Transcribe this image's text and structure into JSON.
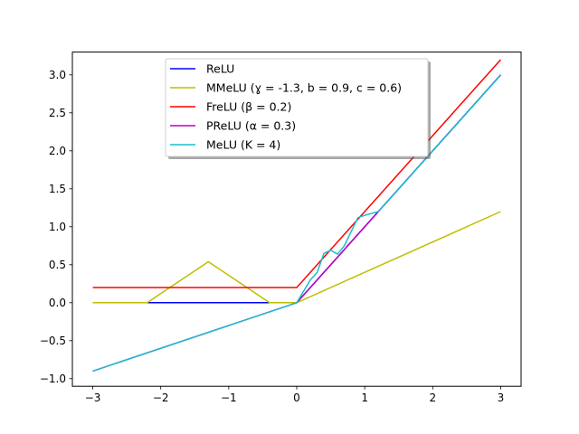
{
  "chart_data": {
    "type": "line",
    "title": "",
    "xlabel": "",
    "ylabel": "",
    "xlim": [
      -3.3,
      3.3
    ],
    "ylim": [
      -1.1,
      3.3
    ],
    "xticks": [
      -3,
      -2,
      -1,
      0,
      1,
      2,
      3
    ],
    "xtick_labels": [
      "−3",
      "−2",
      "−1",
      "0",
      "1",
      "2",
      "3"
    ],
    "yticks": [
      -1.0,
      -0.5,
      0.0,
      0.5,
      1.0,
      1.5,
      2.0,
      2.5,
      3.0
    ],
    "ytick_labels": [
      "−1.0",
      "−0.5",
      "0.0",
      "0.5",
      "1.0",
      "1.5",
      "2.0",
      "2.5",
      "3.0"
    ],
    "grid": false,
    "legend_position": "top-center",
    "series": [
      {
        "name": "ReLU",
        "color": "#0000ff",
        "points": [
          [
            -3,
            0
          ],
          [
            0,
            0
          ],
          [
            3,
            3
          ]
        ]
      },
      {
        "name": "MMeLU (ɣ = -1.3, b = 0.9, c = 0.6)",
        "color": "#bfbf00",
        "points": [
          [
            -3,
            0
          ],
          [
            -2.2,
            0
          ],
          [
            -1.3,
            0.54
          ],
          [
            -0.4,
            0
          ],
          [
            0,
            0
          ],
          [
            3,
            1.2
          ]
        ]
      },
      {
        "name": "FreLU (β = 0.2)",
        "color": "#ff0000",
        "points": [
          [
            -3,
            0.2
          ],
          [
            0,
            0.2
          ],
          [
            3,
            3.2
          ]
        ]
      },
      {
        "name": "PReLU (α = 0.3)",
        "color": "#bf00bf",
        "points": [
          [
            -3,
            -0.9
          ],
          [
            0,
            0
          ],
          [
            3,
            3
          ]
        ]
      },
      {
        "name": "MeLU (K = 4)",
        "color": "#17becf",
        "points": [
          [
            -3,
            -0.9
          ],
          [
            0,
            0
          ],
          [
            0.2,
            0.3
          ],
          [
            0.3,
            0.4
          ],
          [
            0.4,
            0.65
          ],
          [
            0.5,
            0.69
          ],
          [
            0.6,
            0.64
          ],
          [
            0.7,
            0.75
          ],
          [
            0.9,
            1.12
          ],
          [
            1.0,
            1.15
          ],
          [
            1.2,
            1.2
          ],
          [
            3,
            3
          ]
        ]
      }
    ]
  }
}
